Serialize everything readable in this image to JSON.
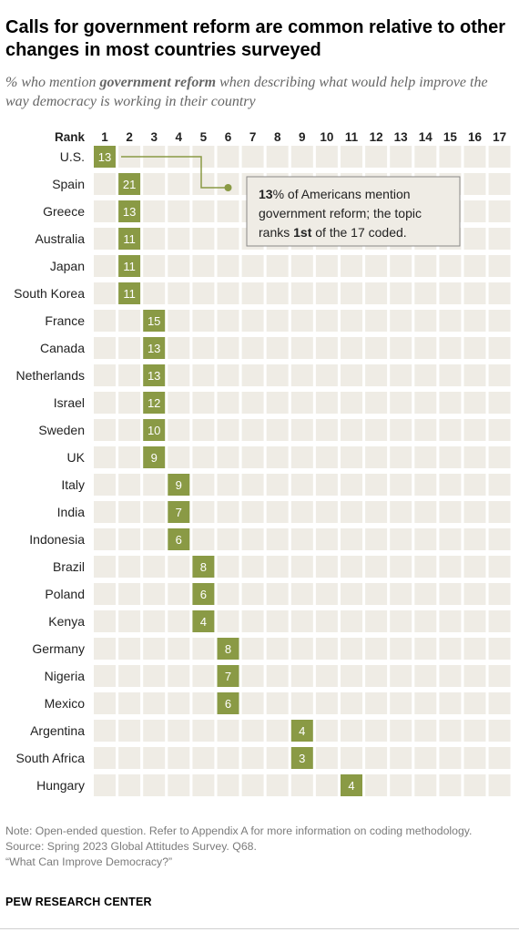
{
  "title": "Calls for government reform are common relative to other changes in most countries surveyed",
  "subtitle": {
    "prefix": "% who mention ",
    "emphasis": "government reform",
    "suffix": " when describing what would help improve the way democracy is working in their country"
  },
  "chart_data": {
    "type": "table",
    "rank_label": "Rank",
    "ranks": [
      1,
      2,
      3,
      4,
      5,
      6,
      7,
      8,
      9,
      10,
      11,
      12,
      13,
      14,
      15,
      16,
      17
    ],
    "rows": [
      {
        "country": "U.S.",
        "rank": 1,
        "value": 13
      },
      {
        "country": "Spain",
        "rank": 2,
        "value": 21
      },
      {
        "country": "Greece",
        "rank": 2,
        "value": 13
      },
      {
        "country": "Australia",
        "rank": 2,
        "value": 11
      },
      {
        "country": "Japan",
        "rank": 2,
        "value": 11
      },
      {
        "country": "South Korea",
        "rank": 2,
        "value": 11
      },
      {
        "country": "France",
        "rank": 3,
        "value": 15
      },
      {
        "country": "Canada",
        "rank": 3,
        "value": 13
      },
      {
        "country": "Netherlands",
        "rank": 3,
        "value": 13
      },
      {
        "country": "Israel",
        "rank": 3,
        "value": 12
      },
      {
        "country": "Sweden",
        "rank": 3,
        "value": 10
      },
      {
        "country": "UK",
        "rank": 3,
        "value": 9
      },
      {
        "country": "Italy",
        "rank": 4,
        "value": 9
      },
      {
        "country": "India",
        "rank": 4,
        "value": 7
      },
      {
        "country": "Indonesia",
        "rank": 4,
        "value": 6
      },
      {
        "country": "Brazil",
        "rank": 5,
        "value": 8
      },
      {
        "country": "Poland",
        "rank": 5,
        "value": 6
      },
      {
        "country": "Kenya",
        "rank": 5,
        "value": 4
      },
      {
        "country": "Germany",
        "rank": 6,
        "value": 8
      },
      {
        "country": "Nigeria",
        "rank": 6,
        "value": 7
      },
      {
        "country": "Mexico",
        "rank": 6,
        "value": 6
      },
      {
        "country": "Argentina",
        "rank": 9,
        "value": 4
      },
      {
        "country": "South Africa",
        "rank": 9,
        "value": 3
      },
      {
        "country": "Hungary",
        "rank": 11,
        "value": 4
      }
    ],
    "annotation": {
      "parts": [
        {
          "text": "13",
          "bold": true
        },
        {
          "text": "% of Americans mention",
          "bold": false
        },
        {
          "br": true
        },
        {
          "text": "government reform; the topic",
          "bold": false
        },
        {
          "br": true
        },
        {
          "text": "ranks ",
          "bold": false
        },
        {
          "text": "1st",
          "bold": true
        },
        {
          "text": " of the 17 coded.",
          "bold": false
        }
      ]
    },
    "colors": {
      "highlight": "#8a9a45",
      "empty_cell": "#efece5",
      "annotation_bg": "#efece5",
      "annotation_border": "#888888"
    }
  },
  "notes": {
    "note": "Note: Open-ended question. Refer to Appendix A for more information on coding methodology.",
    "source": "Source: Spring 2023 Global Attitudes Survey. Q68.",
    "report": "“What Can Improve Democracy?”"
  },
  "footer": "PEW RESEARCH CENTER"
}
